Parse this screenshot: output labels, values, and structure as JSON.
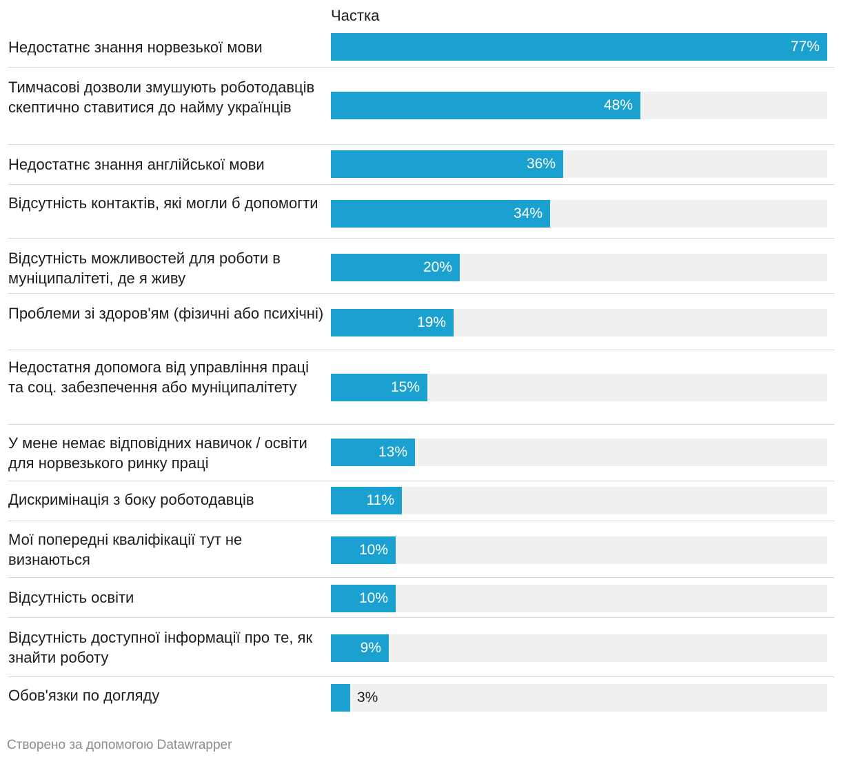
{
  "chart_data": {
    "type": "bar",
    "orientation": "horizontal",
    "column_header": "Частка",
    "categories": [
      "Недостатнє знання норвезької мови",
      "Тимчасові дозволи змушують роботодавців скептично ставитися до найму українців",
      "Недостатнє знання англійської мови",
      "Відсутність контактів, які могли б допомогти",
      "Відсутність можливостей для роботи в муніципалітеті, де я живу",
      "Проблеми зі здоров'ям (фізичні або психічні)",
      "Недостатня допомога від управління праці та соц. забезпечення або муніципалітету",
      "У мене немає відповідних навичок / освіти для норвезького ринку праці",
      "Дискримінація з боку роботодавців",
      "Мої попередні кваліфікації тут не визнаються",
      "Відсутність освіти",
      "Відсутність доступної інформації про те, як знайти роботу",
      "Обов'язки по догляду"
    ],
    "values": [
      77,
      48,
      36,
      34,
      20,
      19,
      15,
      13,
      11,
      10,
      10,
      9,
      3
    ],
    "value_labels": [
      "77%",
      "48%",
      "36%",
      "34%",
      "20%",
      "19%",
      "15%",
      "13%",
      "11%",
      "10%",
      "10%",
      "9%",
      "3%"
    ],
    "xlim": [
      0,
      77
    ],
    "colors": {
      "bar": "#1aa1cf",
      "track": "#f0f0f0"
    }
  },
  "footer": "Створено за допомогою Datawrapper"
}
